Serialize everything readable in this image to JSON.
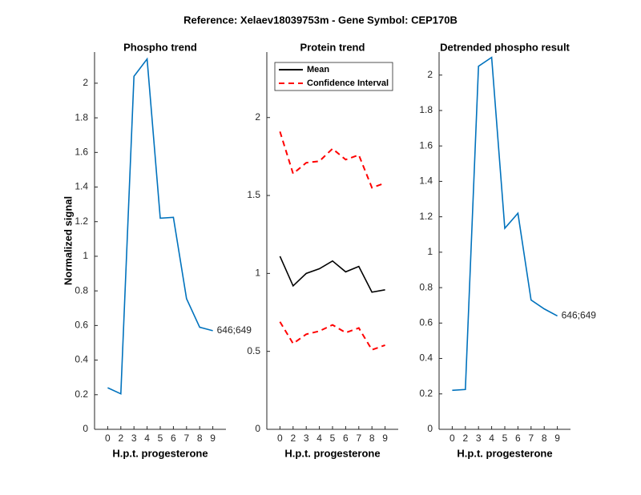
{
  "title": "Reference:  Xelaev18039753m - Gene Symbol:  CEP170B",
  "chart_data": [
    {
      "type": "line",
      "title": "Phospho trend",
      "y_label": "Normalized signal",
      "x_label": "H.p.t. progesterone",
      "categories": [
        "0",
        "2",
        "3",
        "4",
        "5",
        "6",
        "7",
        "8",
        "9"
      ],
      "series": [
        {
          "color": "#0072bd",
          "values": [
            0.24,
            0.205,
            2.04,
            2.14,
            1.22,
            1.225,
            0.755,
            0.59,
            0.57
          ]
        }
      ],
      "annotation": "646;649",
      "ylim": [
        0,
        2.18
      ],
      "yticks": [
        0,
        0.2,
        0.4,
        0.6,
        0.8,
        1,
        1.2,
        1.4,
        1.6,
        1.8,
        2
      ]
    },
    {
      "type": "band-line",
      "title": "Protein trend",
      "x_label": "H.p.t. progesterone",
      "categories": [
        "0",
        "2",
        "3",
        "4",
        "5",
        "6",
        "7",
        "8",
        "9"
      ],
      "series": [
        {
          "name": "Mean",
          "color": "#000000",
          "values": [
            1.11,
            0.92,
            1.0,
            1.03,
            1.08,
            1.01,
            1.045,
            0.88,
            0.895
          ]
        },
        {
          "name": "Confidence Interval",
          "color": "#ff0000",
          "dashed": true,
          "upper": [
            1.91,
            1.64,
            1.71,
            1.72,
            1.8,
            1.73,
            1.76,
            1.55,
            1.58
          ],
          "lower": [
            0.69,
            0.55,
            0.61,
            0.63,
            0.67,
            0.62,
            0.65,
            0.51,
            0.54
          ]
        }
      ],
      "legend": "upper left",
      "ylim": [
        0,
        2.42
      ],
      "yticks": [
        0,
        0.5,
        1,
        1.5,
        2
      ]
    },
    {
      "type": "line",
      "title": "Detrended phospho result",
      "x_label": "H.p.t. progesterone",
      "categories": [
        "0",
        "2",
        "3",
        "4",
        "5",
        "6",
        "7",
        "8",
        "9"
      ],
      "series": [
        {
          "color": "#0072bd",
          "values": [
            0.22,
            0.225,
            2.05,
            2.1,
            1.135,
            1.22,
            0.73,
            0.68,
            0.64
          ]
        }
      ],
      "annotation": "646;649",
      "ylim": [
        0,
        2.13
      ],
      "yticks": [
        0,
        0.2,
        0.4,
        0.6,
        0.8,
        1,
        1.2,
        1.4,
        1.6,
        1.8,
        2
      ]
    }
  ]
}
